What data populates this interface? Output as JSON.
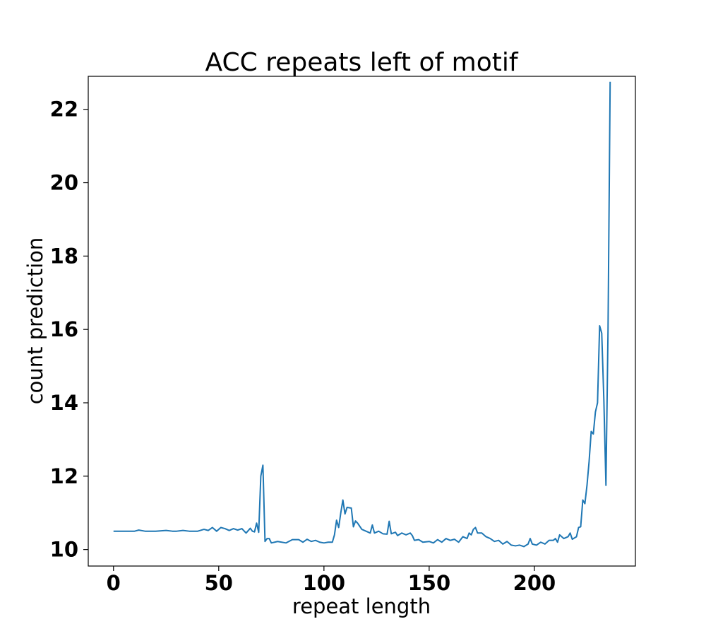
{
  "chart_data": {
    "type": "line",
    "title": "ACC repeats left of motif",
    "xlabel": "repeat length",
    "ylabel": "count prediction",
    "xlim": [
      -12,
      248
    ],
    "ylim": [
      9.55,
      22.9
    ],
    "xticks": [
      0,
      50,
      100,
      150,
      200
    ],
    "xtick_labels": [
      "0",
      "50",
      "100",
      "150",
      "200"
    ],
    "yticks": [
      10,
      12,
      14,
      16,
      18,
      20,
      22
    ],
    "ytick_labels": [
      "10",
      "12",
      "14",
      "16",
      "18",
      "20",
      "22"
    ],
    "grid": false,
    "legend": "none",
    "line_color": "#1f77b4",
    "series": [
      {
        "points": [
          [
            0,
            10.5
          ],
          [
            5,
            10.5
          ],
          [
            10,
            10.5
          ],
          [
            12,
            10.53
          ],
          [
            15,
            10.5
          ],
          [
            20,
            10.5
          ],
          [
            25,
            10.52
          ],
          [
            28,
            10.5
          ],
          [
            30,
            10.5
          ],
          [
            33,
            10.52
          ],
          [
            36,
            10.5
          ],
          [
            40,
            10.5
          ],
          [
            43,
            10.55
          ],
          [
            45,
            10.52
          ],
          [
            47,
            10.6
          ],
          [
            49,
            10.5
          ],
          [
            51,
            10.6
          ],
          [
            53,
            10.57
          ],
          [
            55,
            10.52
          ],
          [
            57,
            10.57
          ],
          [
            59,
            10.53
          ],
          [
            61,
            10.57
          ],
          [
            63,
            10.45
          ],
          [
            65,
            10.58
          ],
          [
            66,
            10.5
          ],
          [
            67,
            10.48
          ],
          [
            68,
            10.72
          ],
          [
            69,
            10.47
          ],
          [
            70,
            12.0
          ],
          [
            71,
            12.3
          ],
          [
            72,
            10.22
          ],
          [
            73,
            10.3
          ],
          [
            74,
            10.3
          ],
          [
            75,
            10.18
          ],
          [
            78,
            10.22
          ],
          [
            82,
            10.18
          ],
          [
            85,
            10.27
          ],
          [
            88,
            10.27
          ],
          [
            90,
            10.2
          ],
          [
            92,
            10.28
          ],
          [
            94,
            10.22
          ],
          [
            96,
            10.25
          ],
          [
            98,
            10.2
          ],
          [
            100,
            10.18
          ],
          [
            102,
            10.2
          ],
          [
            104,
            10.2
          ],
          [
            105,
            10.4
          ],
          [
            106,
            10.8
          ],
          [
            107,
            10.6
          ],
          [
            108,
            11.0
          ],
          [
            109,
            11.35
          ],
          [
            110,
            10.97
          ],
          [
            111,
            11.15
          ],
          [
            112,
            11.14
          ],
          [
            113,
            11.13
          ],
          [
            114,
            10.62
          ],
          [
            115,
            10.78
          ],
          [
            116,
            10.72
          ],
          [
            118,
            10.55
          ],
          [
            120,
            10.5
          ],
          [
            122,
            10.45
          ],
          [
            123,
            10.67
          ],
          [
            124,
            10.45
          ],
          [
            126,
            10.5
          ],
          [
            128,
            10.43
          ],
          [
            130,
            10.42
          ],
          [
            131,
            10.77
          ],
          [
            132,
            10.43
          ],
          [
            134,
            10.47
          ],
          [
            135,
            10.38
          ],
          [
            137,
            10.45
          ],
          [
            139,
            10.4
          ],
          [
            141,
            10.45
          ],
          [
            142,
            10.38
          ],
          [
            143,
            10.25
          ],
          [
            145,
            10.27
          ],
          [
            147,
            10.2
          ],
          [
            150,
            10.22
          ],
          [
            152,
            10.18
          ],
          [
            154,
            10.27
          ],
          [
            156,
            10.2
          ],
          [
            158,
            10.3
          ],
          [
            160,
            10.25
          ],
          [
            162,
            10.28
          ],
          [
            164,
            10.2
          ],
          [
            166,
            10.35
          ],
          [
            168,
            10.3
          ],
          [
            169,
            10.45
          ],
          [
            170,
            10.4
          ],
          [
            171,
            10.55
          ],
          [
            172,
            10.6
          ],
          [
            173,
            10.45
          ],
          [
            175,
            10.45
          ],
          [
            177,
            10.35
          ],
          [
            179,
            10.3
          ],
          [
            181,
            10.22
          ],
          [
            183,
            10.25
          ],
          [
            185,
            10.15
          ],
          [
            187,
            10.22
          ],
          [
            189,
            10.12
          ],
          [
            191,
            10.1
          ],
          [
            193,
            10.12
          ],
          [
            195,
            10.08
          ],
          [
            197,
            10.15
          ],
          [
            198,
            10.3
          ],
          [
            199,
            10.15
          ],
          [
            201,
            10.12
          ],
          [
            203,
            10.2
          ],
          [
            205,
            10.15
          ],
          [
            207,
            10.25
          ],
          [
            209,
            10.25
          ],
          [
            210,
            10.3
          ],
          [
            211,
            10.2
          ],
          [
            212,
            10.4
          ],
          [
            214,
            10.3
          ],
          [
            216,
            10.35
          ],
          [
            217,
            10.45
          ],
          [
            218,
            10.28
          ],
          [
            220,
            10.35
          ],
          [
            221,
            10.6
          ],
          [
            222,
            10.62
          ],
          [
            223,
            11.35
          ],
          [
            224,
            11.25
          ],
          [
            225,
            11.75
          ],
          [
            226,
            12.4
          ],
          [
            227,
            13.22
          ],
          [
            228,
            13.15
          ],
          [
            229,
            13.75
          ],
          [
            230,
            14.0
          ],
          [
            231,
            16.1
          ],
          [
            232,
            15.9
          ],
          [
            233,
            14.1
          ],
          [
            234,
            11.75
          ],
          [
            235,
            16.0
          ],
          [
            236,
            22.75
          ]
        ]
      }
    ]
  }
}
